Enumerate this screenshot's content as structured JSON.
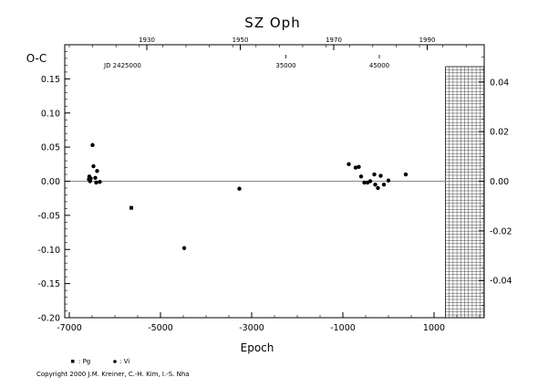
{
  "chart_data": {
    "type": "scatter",
    "title": "SZ Oph",
    "xlabel": "Epoch",
    "ylabel": "O-C",
    "xlim": [
      -7100,
      2100
    ],
    "ylim": [
      -0.2,
      0.2
    ],
    "x_ticks": [
      -7000,
      -5000,
      -3000,
      -1000,
      1000
    ],
    "y_ticks": [
      "-0.20",
      "-0.15",
      "-0.10",
      "-0.05",
      "0.00",
      "0.05",
      "0.10",
      "0.15"
    ],
    "y_tick_values": [
      -0.2,
      -0.15,
      -0.1,
      -0.05,
      0.0,
      0.05,
      0.1,
      0.15
    ],
    "top_year_ticks": [
      "1930",
      "1950",
      "1970",
      "1990"
    ],
    "top_year_positions": [
      -5300,
      -3250,
      -1200,
      850
    ],
    "jd_label": "JD 2425000",
    "jd_ticks": [
      "35000",
      "45000"
    ],
    "jd_positions": [
      -2250,
      -200
    ],
    "right_ticks": [
      "0.04",
      "0.02",
      "0.00",
      "-0.02",
      "-0.04"
    ],
    "right_tick_values": [
      0.04,
      0.02,
      0.0,
      -0.02,
      -0.04
    ],
    "right_ylim": [
      -0.055,
      0.055
    ],
    "grid": false,
    "grid_box_x": [
      1250,
      2100
    ],
    "zero_line": true,
    "series": [
      {
        "name": "Pg",
        "marker": "square",
        "points": [
          [
            -5640,
            -0.039
          ]
        ]
      },
      {
        "name": "Vi",
        "marker": "circle",
        "points": [
          [
            -6560,
            0.007
          ],
          [
            -6570,
            0.003
          ],
          [
            -6545,
            0.0
          ],
          [
            -6530,
            0.004
          ],
          [
            -6490,
            0.053
          ],
          [
            -6470,
            0.022
          ],
          [
            -6430,
            0.005
          ],
          [
            -6410,
            -0.002
          ],
          [
            -6390,
            0.015
          ],
          [
            -6330,
            -0.001
          ],
          [
            -4480,
            -0.098
          ],
          [
            -3270,
            -0.011
          ],
          [
            -870,
            0.025
          ],
          [
            -720,
            0.02
          ],
          [
            -650,
            0.021
          ],
          [
            -600,
            0.007
          ],
          [
            -530,
            -0.002
          ],
          [
            -460,
            -0.002
          ],
          [
            -400,
            0.0
          ],
          [
            -310,
            0.01
          ],
          [
            -290,
            -0.005
          ],
          [
            -230,
            -0.01
          ],
          [
            -170,
            0.008
          ],
          [
            -100,
            -0.005
          ],
          [
            0,
            0.001
          ],
          [
            380,
            0.01
          ]
        ]
      }
    ],
    "legend": {
      "items": [
        ": Pg",
        ": Vi"
      ],
      "placement": "bottom-left"
    }
  },
  "copyright": "Copyright 2000 J.M. Kreiner, C.-H. Kim, I.-S. Nha",
  "colors": {
    "ink": "#000000",
    "background": "#ffffff",
    "zero_line": "#888888"
  }
}
